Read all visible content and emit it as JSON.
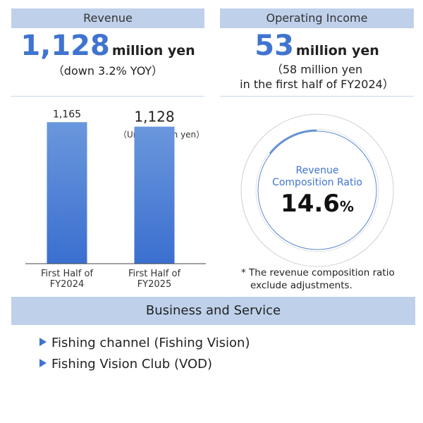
{
  "revenue": {
    "header": "Revenue",
    "value": "1,128",
    "unit": "million yen",
    "change": "（down 3.2% YOY）"
  },
  "operating_income": {
    "header": "Operating Income",
    "value": "53",
    "unit": "million yen",
    "prior_line1": "（58 million yen",
    "prior_line2": "in the first half of FY2024）"
  },
  "chart_data": [
    {
      "type": "bar",
      "unit_label": "（Unit: million yen）",
      "categories": [
        "First Half of FY2024",
        "First Half of FY2025"
      ],
      "category_lines": [
        [
          "First Half of",
          "FY2024"
        ],
        [
          "First Half of",
          "FY2025"
        ]
      ],
      "values": [
        1165,
        1128
      ],
      "value_labels": [
        "1,165",
        "1,128"
      ],
      "ylim": [
        0,
        1300
      ],
      "colors": {
        "bar_top": "#6a97dc",
        "bar_bottom": "#3b6fd0"
      }
    },
    {
      "type": "pie",
      "center_label_line1": "Revenue",
      "center_label_line2": "Composition Ratio",
      "value": 14.6,
      "value_text": "14.6",
      "percent_sign": "%",
      "colors": {
        "slice": "#6b97d3",
        "rest": "#ffffff",
        "ring_border": "#d0d0d0",
        "inner_border": "#5b8ad0"
      }
    }
  ],
  "note": {
    "line1": "* The revenue composition ratio",
    "line2": "exclude adjustments."
  },
  "business": {
    "header": "Business and Service",
    "items": [
      "Fishing channel (Fishing Vision)",
      "Fishing Vision Club (VOD)"
    ]
  }
}
